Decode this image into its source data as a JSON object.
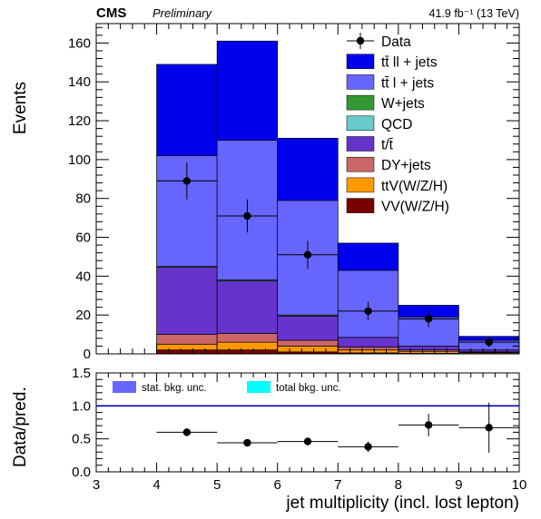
{
  "header": {
    "experiment": "CMS",
    "status": "Preliminary",
    "lumi": "41.9 fb⁻¹ (13 TeV)"
  },
  "chart_data": [
    {
      "type": "bar",
      "stacked": true,
      "ylabel": "Events",
      "xlim": [
        3,
        10
      ],
      "ylim": [
        0,
        170
      ],
      "yticks": [
        "0",
        "20",
        "40",
        "60",
        "80",
        "100",
        "120",
        "140",
        "160"
      ],
      "bin_edges": [
        4,
        5,
        6,
        7,
        8,
        9,
        10
      ],
      "series": [
        {
          "name": "VV(W/Z/H)",
          "color": "#7a0000",
          "values": [
            2,
            2,
            1,
            0.5,
            0.3,
            0.2
          ]
        },
        {
          "name": "ttV(W/Z/H)",
          "color": "#ff9900",
          "values": [
            3,
            4,
            3,
            1.5,
            1,
            0.5
          ]
        },
        {
          "name": "DY+jets",
          "color": "#cc6666",
          "values": [
            5,
            4.5,
            3,
            1.5,
            0.7,
            0.3
          ]
        },
        {
          "name": "t/t̄",
          "color": "#6633cc",
          "values": [
            34.5,
            27,
            12.5,
            5,
            2,
            1
          ]
        },
        {
          "name": "QCD",
          "color": "#66cccc",
          "values": [
            0,
            0,
            0,
            0,
            0,
            0
          ]
        },
        {
          "name": "W+jets",
          "color": "#339933",
          "values": [
            0.5,
            0.5,
            0.5,
            0,
            0,
            0
          ]
        },
        {
          "name": "tt̄ l + jets",
          "color": "#6666ff",
          "values": [
            57,
            72,
            59,
            34.5,
            15,
            5
          ]
        },
        {
          "name": "tt̄ ll + jets",
          "color": "#0000ee",
          "values": [
            47,
            51,
            32,
            14,
            6,
            2
          ]
        }
      ],
      "data": {
        "name": "Data",
        "x": [
          4.5,
          5.5,
          6.5,
          7.5,
          8.5,
          9.5
        ],
        "y": [
          89,
          71,
          51,
          22,
          18,
          6
        ],
        "yerr": [
          9.5,
          8.5,
          7.2,
          4.7,
          4.3,
          2.5
        ]
      },
      "legend_order": [
        "Data",
        "tt̄ ll + jets",
        "tt̄ l + jets",
        "W+jets",
        "QCD",
        "t/t̄",
        "DY+jets",
        "ttV(W/Z/H)",
        "VV(W/Z/H)"
      ],
      "legend_position": "top-right"
    },
    {
      "type": "scatter",
      "ylabel": "Data/pred.",
      "xlabel": "jet multiplicity (incl. lost lepton)",
      "xlim": [
        3,
        10
      ],
      "ylim": [
        0,
        1.5
      ],
      "xticks": [
        "3",
        "4",
        "5",
        "6",
        "7",
        "8",
        "9",
        "10"
      ],
      "yticks": [
        "0.0",
        "0.5",
        "1.0",
        "1.5"
      ],
      "reference_line": 1.0,
      "x": [
        4.5,
        5.5,
        6.5,
        7.5,
        8.5,
        9.5
      ],
      "y": [
        0.6,
        0.44,
        0.46,
        0.38,
        0.71,
        0.67
      ],
      "yerr": [
        0.06,
        0.05,
        0.06,
        0.08,
        0.17,
        0.38
      ],
      "uncertainty_legend": [
        {
          "label": "stat. bkg. unc.",
          "color": "#6666ff"
        },
        {
          "label": "total bkg. unc.",
          "color": "#00ffff"
        }
      ]
    }
  ]
}
